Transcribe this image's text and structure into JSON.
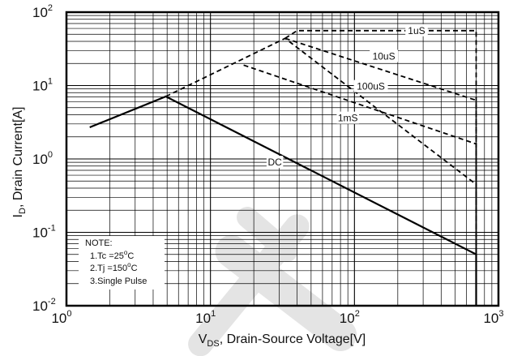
{
  "chart_data": {
    "type": "line",
    "title": "",
    "xscale": "log",
    "yscale": "log",
    "xlim": [
      1,
      1000
    ],
    "ylim": [
      0.01,
      100
    ],
    "grid": true,
    "x_ticks": [
      {
        "base": "10",
        "exp": "0"
      },
      {
        "base": "10",
        "exp": "1"
      },
      {
        "base": "10",
        "exp": "2"
      },
      {
        "base": "10",
        "exp": "3"
      }
    ],
    "y_ticks": [
      {
        "base": "10",
        "exp": "-2"
      },
      {
        "base": "10",
        "exp": "-1"
      },
      {
        "base": "10",
        "exp": "0"
      },
      {
        "base": "10",
        "exp": "1"
      },
      {
        "base": "10",
        "exp": "2"
      }
    ],
    "xlabel": {
      "main": "V",
      "sub": "DS",
      "rest": ", Drain-Source Voltage[V]"
    },
    "ylabel": {
      "main": "I",
      "sub": "D",
      "rest": ", Drain Current[A]"
    },
    "series": [
      {
        "name": "DC",
        "style": "solid",
        "points": [
          [
            1.45,
            2.7
          ],
          [
            4.9,
            7.1
          ],
          [
            700,
            0.05
          ],
          [
            700,
            0.01
          ]
        ]
      },
      {
        "name": "1mS",
        "style": "dashed",
        "points": [
          [
            4.9,
            7.1
          ],
          [
            33,
            44
          ],
          [
            700,
            0.45
          ],
          [
            700,
            0.01
          ]
        ]
      },
      {
        "name": "100uS",
        "style": "dashed",
        "points": [
          [
            17,
            19
          ],
          [
            700,
            1.6
          ],
          [
            700,
            0.01
          ]
        ]
      },
      {
        "name": "10uS",
        "style": "dashed",
        "points": [
          [
            33,
            44
          ],
          [
            700,
            6.3
          ],
          [
            700,
            0.01
          ]
        ]
      },
      {
        "name": "1uS",
        "style": "dashed",
        "points": [
          [
            33,
            44
          ],
          [
            40,
            56
          ],
          [
            700,
            56
          ],
          [
            700,
            0.01
          ]
        ]
      }
    ],
    "curve_labels": [
      {
        "text": "1uS",
        "x": 270,
        "y": 56
      },
      {
        "text": "10uS",
        "x": 160,
        "y": 25
      },
      {
        "text": "100uS",
        "x": 130,
        "y": 9.7
      },
      {
        "text": "1mS",
        "x": 90,
        "y": 3.6
      },
      {
        "text": "DC",
        "x": 28,
        "y": 0.9
      }
    ],
    "note": {
      "title": "NOTE:",
      "line1": {
        "pre": "1.Tc =25",
        "sup": "o",
        "post": "C"
      },
      "line2": {
        "pre": "2.Tj =150",
        "sup": "o",
        "post": "C"
      },
      "line3": "3.Single Pulse"
    },
    "colors": {
      "line": "#000000",
      "grid": "#000000",
      "watermark": "#e4e4e4"
    }
  }
}
